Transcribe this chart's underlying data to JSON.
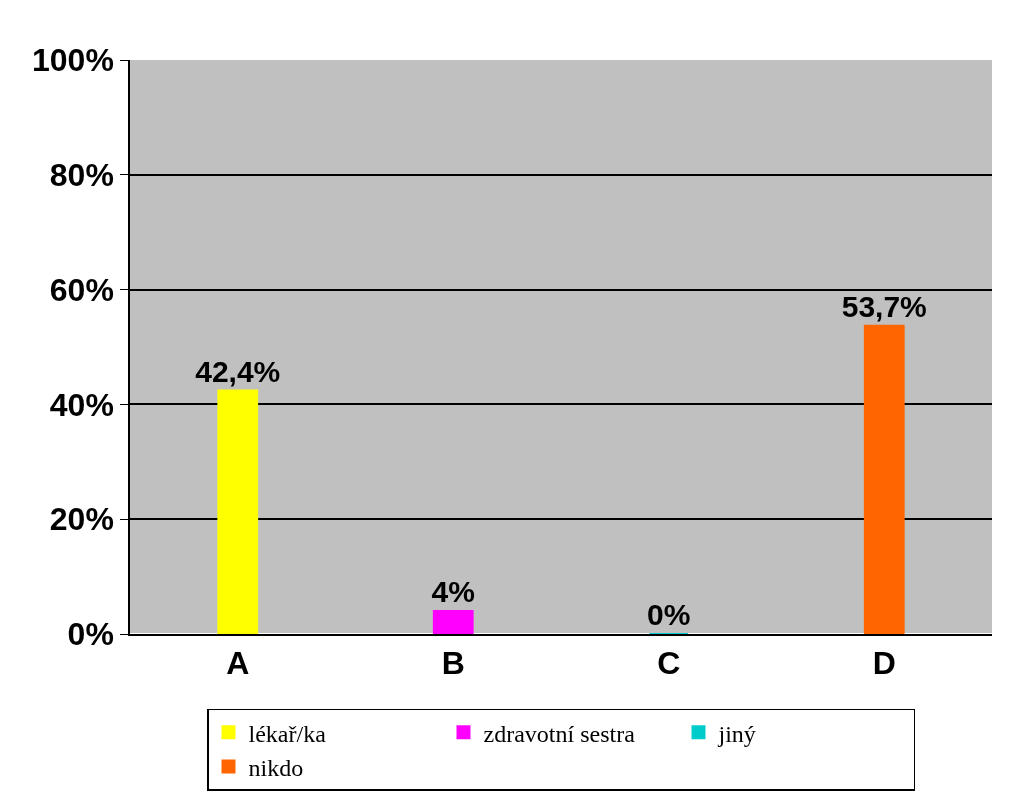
{
  "chart_data": {
    "type": "bar",
    "categories": [
      "A",
      "B",
      "C",
      "D"
    ],
    "series": [
      {
        "name": "lékař/ka",
        "color": "#ffff00",
        "values": [
          42.4,
          null,
          null,
          null
        ],
        "value_labels": [
          "42,4%",
          null,
          null,
          null
        ]
      },
      {
        "name": "zdravotní sestra",
        "color": "#ff00ff",
        "values": [
          null,
          4,
          null,
          null
        ],
        "value_labels": [
          null,
          "4%",
          null,
          null
        ]
      },
      {
        "name": "jiný",
        "color": "#00cccc",
        "values": [
          null,
          null,
          0,
          null
        ],
        "value_labels": [
          null,
          null,
          "0%",
          null
        ]
      },
      {
        "name": "nikdo",
        "color": "#ff6600",
        "values": [
          null,
          null,
          null,
          53.7
        ],
        "value_labels": [
          null,
          null,
          null,
          "53,7%"
        ]
      }
    ],
    "ylim": [
      0,
      100
    ],
    "yticks": [
      {
        "value": 0,
        "label": "0%"
      },
      {
        "value": 20,
        "label": "20%"
      },
      {
        "value": 40,
        "label": "40%"
      },
      {
        "value": 60,
        "label": "60%"
      },
      {
        "value": 80,
        "label": "80%"
      },
      {
        "value": 100,
        "label": "100%"
      }
    ],
    "grid": "y",
    "legend": "bottom"
  }
}
